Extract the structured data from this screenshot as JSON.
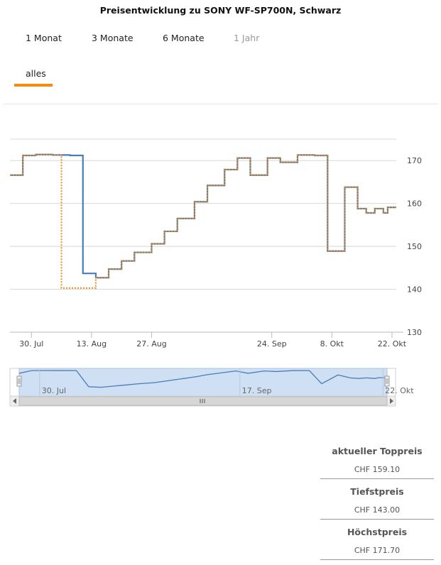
{
  "title": "Preisentwicklung zu SONY WF-SP700N, Schwarz",
  "range_tabs": [
    {
      "label": "1 Monat",
      "disabled": false
    },
    {
      "label": "3 Monate",
      "disabled": false
    },
    {
      "label": "6 Monate",
      "disabled": false
    },
    {
      "label": "1 Jahr",
      "disabled": true
    },
    {
      "label": "alles",
      "disabled": false,
      "active": true
    }
  ],
  "colors": {
    "series_main": "#4a7db5",
    "series_secondary": "#f28c17",
    "series_overlap": "#8a8a6a",
    "active_tab": "#f28c17",
    "navigator_fill": "#cfe0f5",
    "grid": "#d8d8d8"
  },
  "chart_data": {
    "type": "line",
    "step": true,
    "title": "",
    "xlabel": "",
    "ylabel": "",
    "ylim": [
      130,
      175
    ],
    "y_ticks": [
      "130",
      "140",
      "150",
      "160",
      "170"
    ],
    "x_ticks": [
      "30. Jul",
      "13. Aug",
      "27. Aug",
      "24. Sep",
      "8. Okt",
      "22. Okt"
    ],
    "x_tick_dates": [
      "2018-07-30",
      "2018-08-13",
      "2018-08-27",
      "2018-09-24",
      "2018-10-08",
      "2018-10-22"
    ],
    "x_range": [
      "2018-07-25",
      "2018-10-23"
    ],
    "grid": true,
    "legend": "none",
    "series": [
      {
        "name": "",
        "color": "#4a7db5",
        "points": [
          [
            "2018-07-25",
            166.6
          ],
          [
            "2018-07-28",
            171.2
          ],
          [
            "2018-07-31",
            171.4
          ],
          [
            "2018-08-04",
            171.3
          ],
          [
            "2018-08-08",
            171.2
          ],
          [
            "2018-08-11",
            143.7
          ],
          [
            "2018-08-14",
            142.7
          ],
          [
            "2018-08-17",
            144.7
          ],
          [
            "2018-08-20",
            146.6
          ],
          [
            "2018-08-23",
            148.6
          ],
          [
            "2018-08-27",
            150.6
          ],
          [
            "2018-08-30",
            153.5
          ],
          [
            "2018-09-02",
            156.5
          ],
          [
            "2018-09-06",
            160.4
          ],
          [
            "2018-09-09",
            164.2
          ],
          [
            "2018-09-13",
            167.9
          ],
          [
            "2018-09-16",
            170.6
          ],
          [
            "2018-09-19",
            166.6
          ],
          [
            "2018-09-23",
            170.6
          ],
          [
            "2018-09-26",
            169.6
          ],
          [
            "2018-09-30",
            171.3
          ],
          [
            "2018-10-04",
            171.2
          ],
          [
            "2018-10-07",
            148.9
          ],
          [
            "2018-10-11",
            163.8
          ],
          [
            "2018-10-14",
            158.8
          ],
          [
            "2018-10-16",
            157.8
          ],
          [
            "2018-10-18",
            158.8
          ],
          [
            "2018-10-20",
            157.8
          ],
          [
            "2018-10-21",
            159.1
          ],
          [
            "2018-10-23",
            159.1
          ]
        ]
      },
      {
        "name": "",
        "color": "#f28c17",
        "points": [
          [
            "2018-07-25",
            166.6
          ],
          [
            "2018-07-28",
            171.2
          ],
          [
            "2018-07-31",
            171.4
          ],
          [
            "2018-08-04",
            171.3
          ],
          [
            "2018-08-06",
            140.3
          ],
          [
            "2018-08-14",
            142.7
          ],
          [
            "2018-08-17",
            144.7
          ],
          [
            "2018-08-20",
            146.6
          ],
          [
            "2018-08-23",
            148.6
          ],
          [
            "2018-08-27",
            150.6
          ],
          [
            "2018-08-30",
            153.5
          ],
          [
            "2018-09-02",
            156.5
          ],
          [
            "2018-09-06",
            160.4
          ],
          [
            "2018-09-09",
            164.2
          ],
          [
            "2018-09-13",
            167.9
          ],
          [
            "2018-09-16",
            170.6
          ],
          [
            "2018-09-19",
            166.6
          ],
          [
            "2018-09-23",
            170.6
          ],
          [
            "2018-09-26",
            169.6
          ],
          [
            "2018-09-30",
            171.3
          ],
          [
            "2018-10-04",
            171.2
          ],
          [
            "2018-10-07",
            148.9
          ],
          [
            "2018-10-11",
            163.8
          ],
          [
            "2018-10-14",
            158.8
          ],
          [
            "2018-10-16",
            157.8
          ],
          [
            "2018-10-18",
            158.8
          ],
          [
            "2018-10-20",
            157.8
          ],
          [
            "2018-10-21",
            159.1
          ],
          [
            "2018-10-23",
            159.1
          ]
        ]
      }
    ],
    "navigator": {
      "x_ticks": [
        "30. Jul",
        "17. Sep",
        "22. Okt"
      ],
      "x_tick_dates": [
        "2018-07-30",
        "2018-09-17",
        "2018-10-22"
      ]
    }
  },
  "stats": [
    {
      "label": "aktueller Toppreis",
      "value": "CHF 159.10"
    },
    {
      "label": "Tiefstpreis",
      "value": "CHF 143.00"
    },
    {
      "label": "Höchstpreis",
      "value": "CHF 171.70"
    }
  ]
}
